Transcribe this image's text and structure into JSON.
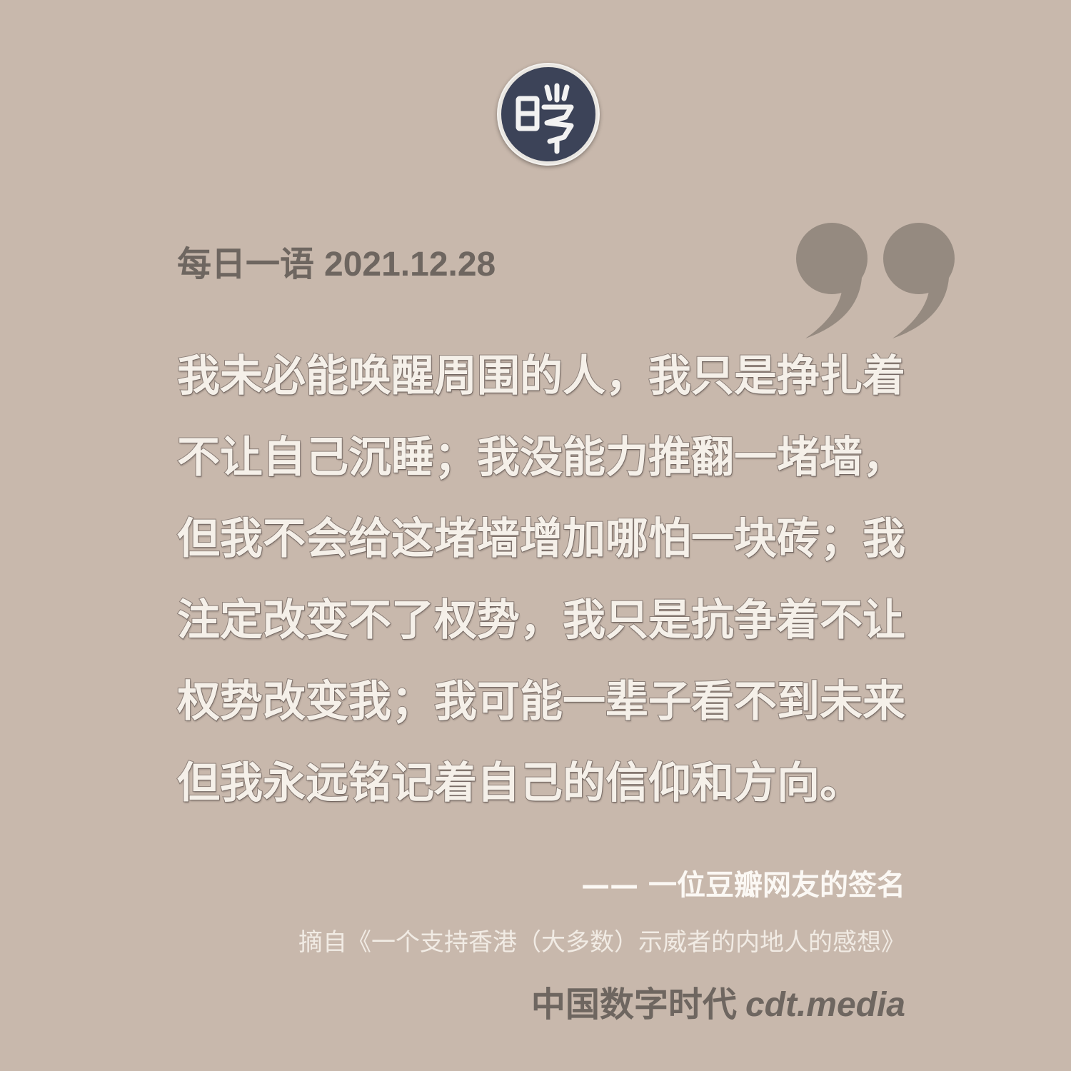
{
  "header": {
    "label": "每日一语",
    "date": "2021.12.28"
  },
  "quote": {
    "lines": [
      "我未必能唤醒周围的人，我只是挣扎着",
      "不让自己沉睡；我没能力推翻一堵墙，",
      "但我不会给这堵墙增加哪怕一块砖；我",
      "注定改变不了权势，我只是抗争着不让",
      "权势改变我；我可能一辈子看不到未来",
      "但我永远铭记着自己的信仰和方向。"
    ]
  },
  "attribution": "—— 一位豆瓣网友的签名",
  "source": "摘自《一个支持香港（大多数）示威者的内地人的感想》",
  "brand": {
    "name": "中国数字时代",
    "url": "cdt.media"
  },
  "icons": {
    "logo": "cdt-seal-logo-icon",
    "quote": "closing-quote-mark-icon"
  },
  "colors": {
    "background": "#c8b8ac",
    "heading": "#6e6660",
    "quote_text": "#f5f0e9",
    "quote_mark": "#958a80",
    "logo_disc": "#3c4358"
  }
}
